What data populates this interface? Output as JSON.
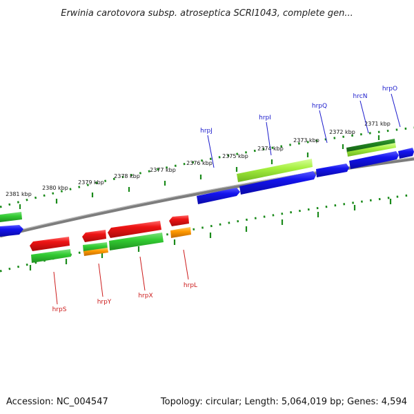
{
  "title": "Erwinia carotovora subsp. atroseptica SCRI1043, complete gen...",
  "footer": {
    "accession": "Accession: NC_004547",
    "stats": "Topology: circular; Length: 5,064,019 bp; Genes: 4,594"
  },
  "scale_labels": [
    "2381 kbp",
    "2380 kbp",
    "2379 kbp",
    "2378 kbp",
    "2377 kbp",
    "2376 kbp",
    "2375 kbp",
    "2374 kbp",
    "2373 kbp",
    "2372 kbp",
    "2371 kbp"
  ],
  "genes_forward": [
    "hrpJ",
    "hrpI",
    "hrpQ",
    "hrcN",
    "hrpO"
  ],
  "genes_reverse": [
    "hrpS",
    "hrpY",
    "hrpX",
    "hrpL"
  ],
  "colors": {
    "cds_forward": "#1212e6",
    "cds_reverse": "#e61212",
    "function_green": "#33cc33",
    "function_darkgreen": "#1f8f1f",
    "function_lime": "#99ee33",
    "function_orange": "#ff9900",
    "backbone": "#8c8c8c",
    "ticks": "#1a8a1a"
  }
}
